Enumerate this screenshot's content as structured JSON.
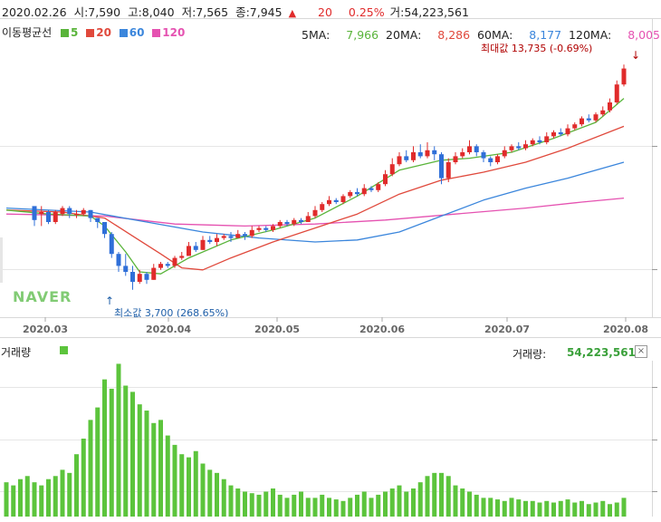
{
  "colors": {
    "up": "#e02b2b",
    "down": "#2f6fd8",
    "ma5": "#59b43a",
    "ma20": "#e0493c",
    "ma60": "#3b86dc",
    "ma120": "#e552b1",
    "volume": "#5cc43c",
    "grid": "#e6e6e6",
    "axis": "#d8d8d8",
    "watermark": "#6cc35c"
  },
  "header": {
    "date": "2020.02.26",
    "open_label": "시:",
    "open": "7,590",
    "high_label": "고:",
    "high": "8,040",
    "low_label": "저:",
    "low": "7,565",
    "close_label": "종:",
    "close": "7,945",
    "change_icon": "up-triangle-icon",
    "change": "20",
    "change_pct": "0.25%",
    "volume_label": "거:",
    "volume": "54,223,561"
  },
  "legend": {
    "title": "이동평균선",
    "items": [
      {
        "label": "5",
        "color": "#59b43a"
      },
      {
        "label": "20",
        "color": "#e0493c"
      },
      {
        "label": "60",
        "color": "#3b86dc"
      },
      {
        "label": "120",
        "color": "#e552b1"
      }
    ],
    "ma_values": [
      {
        "label": "5MA:",
        "value": "7,966",
        "color": "#59b43a"
      },
      {
        "label": "20MA:",
        "value": "8,286",
        "color": "#e0493c"
      },
      {
        "label": "60MA:",
        "value": "8,177",
        "color": "#3b86dc"
      },
      {
        "label": "120MA:",
        "value": "8,005",
        "color": "#e552b1"
      }
    ]
  },
  "annotations": {
    "max_text": "최대값 13,735 (-0.69%)",
    "min_text": "최소값 3,700 (268.65%)"
  },
  "watermark": "NAVER",
  "volume_panel": {
    "label": "거래량",
    "value_label": "거래량:",
    "value": "54,223,561",
    "close_icon": "close-icon"
  },
  "chart_data": [
    {
      "type": "line",
      "x_tick_labels": [
        "2020.03",
        "2020.04",
        "2020.05",
        "2020.06",
        "2020.07",
        "2020.08"
      ],
      "candles": [
        [
          4,
          4.8,
          4.1,
          4.6,
          3.8
        ],
        [
          5,
          4.4,
          4.5,
          4.8,
          3.8
        ],
        [
          6,
          4.5,
          4.0,
          4.6,
          3.9
        ],
        [
          7,
          4.0,
          4.5,
          4.6,
          3.9
        ],
        [
          8,
          4.4,
          4.7,
          4.8,
          4.3
        ],
        [
          9,
          4.7,
          4.4,
          4.8,
          4.2
        ],
        [
          10,
          4.4,
          4.4,
          4.6,
          4.2
        ],
        [
          11,
          4.4,
          4.6,
          4.7,
          4.3
        ],
        [
          12,
          4.6,
          4.2,
          4.6,
          4.0
        ],
        [
          13,
          4.2,
          4.0,
          4.2,
          3.7
        ],
        [
          14,
          4.0,
          3.4,
          4.0,
          3.2
        ],
        [
          15,
          3.4,
          2.4,
          3.5,
          2.2
        ],
        [
          16,
          2.4,
          1.8,
          2.5,
          1.5
        ],
        [
          17,
          1.8,
          1.5,
          2.4,
          1.3
        ],
        [
          18,
          1.5,
          1.0,
          1.8,
          0.6
        ],
        [
          19,
          1.0,
          1.4,
          1.6,
          0.9
        ],
        [
          20,
          1.4,
          1.1,
          1.5,
          0.9
        ],
        [
          21,
          1.1,
          1.7,
          1.9,
          1.1
        ],
        [
          22,
          1.7,
          1.9,
          2.0,
          1.6
        ],
        [
          23,
          1.9,
          1.8,
          2.0,
          1.7
        ],
        [
          24,
          1.8,
          2.2,
          2.3,
          1.7
        ],
        [
          25,
          2.2,
          2.3,
          2.5,
          2.1
        ],
        [
          26,
          2.3,
          2.8,
          3.0,
          2.3
        ],
        [
          27,
          2.8,
          2.6,
          3.0,
          2.5
        ],
        [
          28,
          2.6,
          3.1,
          3.3,
          2.6
        ],
        [
          29,
          3.1,
          3.0,
          3.3,
          2.9
        ],
        [
          30,
          3.0,
          3.2,
          3.4,
          2.8
        ],
        [
          31,
          3.2,
          3.3,
          3.4,
          3.1
        ],
        [
          32,
          3.3,
          3.2,
          3.5,
          3.0
        ],
        [
          33,
          3.2,
          3.4,
          3.6,
          3.2
        ],
        [
          34,
          3.4,
          3.3,
          3.5,
          3.1
        ],
        [
          35,
          3.3,
          3.6,
          3.8,
          3.2
        ],
        [
          36,
          3.6,
          3.7,
          3.8,
          3.5
        ],
        [
          37,
          3.7,
          3.6,
          3.8,
          3.5
        ],
        [
          38,
          3.6,
          3.8,
          3.9,
          3.5
        ],
        [
          39,
          3.8,
          4.0,
          4.1,
          3.7
        ],
        [
          40,
          4.0,
          3.9,
          4.1,
          3.8
        ],
        [
          41,
          3.9,
          4.1,
          4.2,
          3.8
        ],
        [
          42,
          4.1,
          4.0,
          4.2,
          3.9
        ],
        [
          43,
          4.0,
          4.3,
          4.5,
          4.0
        ],
        [
          44,
          4.3,
          4.6,
          4.8,
          4.2
        ],
        [
          45,
          4.6,
          4.9,
          5.0,
          4.5
        ],
        [
          46,
          4.9,
          5.1,
          5.3,
          4.8
        ],
        [
          47,
          5.1,
          5.0,
          5.2,
          4.9
        ],
        [
          48,
          5.0,
          5.3,
          5.4,
          4.9
        ],
        [
          49,
          5.3,
          5.5,
          5.6,
          5.2
        ],
        [
          50,
          5.5,
          5.4,
          5.7,
          5.3
        ],
        [
          51,
          5.4,
          5.7,
          5.9,
          5.3
        ],
        [
          52,
          5.7,
          5.6,
          5.8,
          5.5
        ],
        [
          53,
          5.6,
          5.9,
          6.0,
          5.5
        ],
        [
          54,
          5.9,
          6.4,
          6.6,
          5.8
        ],
        [
          55,
          6.4,
          6.9,
          7.2,
          6.3
        ],
        [
          56,
          6.9,
          7.3,
          7.5,
          6.8
        ],
        [
          57,
          7.3,
          7.1,
          7.6,
          7.0
        ],
        [
          58,
          7.1,
          7.5,
          7.8,
          7.0
        ],
        [
          59,
          7.5,
          7.3,
          7.9,
          7.2
        ],
        [
          60,
          7.3,
          7.6,
          8.0,
          7.2
        ],
        [
          61,
          7.6,
          7.4,
          7.8,
          7.1
        ],
        [
          62,
          7.4,
          6.2,
          7.5,
          5.9
        ],
        [
          63,
          6.2,
          7.0,
          7.2,
          6.0
        ],
        [
          64,
          7.0,
          7.3,
          7.5,
          6.9
        ],
        [
          65,
          7.3,
          7.5,
          7.7,
          7.2
        ],
        [
          66,
          7.5,
          7.8,
          8.1,
          7.4
        ],
        [
          67,
          7.8,
          7.5,
          7.9,
          7.3
        ],
        [
          68,
          7.5,
          7.2,
          7.6,
          7.0
        ],
        [
          69,
          7.2,
          7.0,
          7.3,
          6.8
        ],
        [
          70,
          7.0,
          7.3,
          7.4,
          6.9
        ],
        [
          71,
          7.3,
          7.6,
          7.8,
          7.2
        ],
        [
          72,
          7.6,
          7.8,
          7.9,
          7.5
        ],
        [
          73,
          7.8,
          7.7,
          8.0,
          7.6
        ],
        [
          74,
          7.7,
          7.9,
          8.1,
          7.6
        ],
        [
          75,
          7.9,
          8.1,
          8.2,
          7.8
        ],
        [
          76,
          8.1,
          8.0,
          8.3,
          7.9
        ],
        [
          77,
          8.0,
          8.3,
          8.5,
          7.9
        ],
        [
          78,
          8.3,
          8.5,
          8.6,
          8.2
        ],
        [
          79,
          8.5,
          8.4,
          8.7,
          8.3
        ],
        [
          80,
          8.4,
          8.7,
          8.9,
          8.3
        ],
        [
          81,
          8.7,
          8.9,
          9.0,
          8.6
        ],
        [
          82,
          8.9,
          9.2,
          9.3,
          8.8
        ],
        [
          83,
          9.2,
          9.1,
          9.4,
          9.0
        ],
        [
          84,
          9.1,
          9.4,
          9.5,
          9.0
        ],
        [
          85,
          9.4,
          9.6,
          9.8,
          9.3
        ],
        [
          86,
          9.6,
          10.0,
          10.2,
          9.5
        ],
        [
          87,
          10.0,
          10.9,
          11.1,
          9.9
        ],
        [
          88,
          10.9,
          11.7,
          11.9,
          10.8
        ]
      ],
      "ma5": [
        [
          0,
          4.6
        ],
        [
          6,
          4.4
        ],
        [
          12,
          4.3
        ],
        [
          14,
          3.8
        ],
        [
          17,
          2.5
        ],
        [
          19,
          1.5
        ],
        [
          22,
          1.4
        ],
        [
          26,
          2.2
        ],
        [
          32,
          3.1
        ],
        [
          38,
          3.6
        ],
        [
          44,
          4.2
        ],
        [
          50,
          5.3
        ],
        [
          56,
          6.6
        ],
        [
          62,
          7.1
        ],
        [
          66,
          7.2
        ],
        [
          72,
          7.5
        ],
        [
          78,
          8.2
        ],
        [
          84,
          9.0
        ],
        [
          88,
          10.2
        ]
      ],
      "ma20": [
        [
          0,
          4.6
        ],
        [
          8,
          4.5
        ],
        [
          14,
          4.2
        ],
        [
          18,
          3.3
        ],
        [
          22,
          2.4
        ],
        [
          25,
          1.7
        ],
        [
          28,
          1.6
        ],
        [
          32,
          2.2
        ],
        [
          38,
          3.0
        ],
        [
          44,
          3.7
        ],
        [
          50,
          4.4
        ],
        [
          56,
          5.4
        ],
        [
          62,
          6.1
        ],
        [
          68,
          6.5
        ],
        [
          74,
          7.0
        ],
        [
          80,
          7.7
        ],
        [
          88,
          8.8
        ]
      ],
      "ma60": [
        [
          0,
          4.7
        ],
        [
          12,
          4.5
        ],
        [
          20,
          4.0
        ],
        [
          28,
          3.5
        ],
        [
          36,
          3.2
        ],
        [
          44,
          3.0
        ],
        [
          50,
          3.1
        ],
        [
          56,
          3.5
        ],
        [
          62,
          4.3
        ],
        [
          68,
          5.1
        ],
        [
          74,
          5.7
        ],
        [
          80,
          6.2
        ],
        [
          88,
          7.0
        ]
      ],
      "ma120": [
        [
          0,
          4.4
        ],
        [
          14,
          4.3
        ],
        [
          24,
          3.9
        ],
        [
          34,
          3.8
        ],
        [
          44,
          3.9
        ],
        [
          54,
          4.1
        ],
        [
          64,
          4.4
        ],
        [
          74,
          4.7
        ],
        [
          82,
          5.0
        ],
        [
          88,
          5.2
        ]
      ],
      "volume": [
        [
          0,
          22
        ],
        [
          1,
          20
        ],
        [
          2,
          24
        ],
        [
          3,
          26
        ],
        [
          4,
          22
        ],
        [
          5,
          20
        ],
        [
          6,
          24
        ],
        [
          7,
          26
        ],
        [
          8,
          30
        ],
        [
          9,
          28
        ],
        [
          10,
          40
        ],
        [
          11,
          50
        ],
        [
          12,
          62
        ],
        [
          13,
          70
        ],
        [
          14,
          88
        ],
        [
          15,
          82
        ],
        [
          16,
          98
        ],
        [
          17,
          84
        ],
        [
          18,
          80
        ],
        [
          19,
          72
        ],
        [
          20,
          68
        ],
        [
          21,
          60
        ],
        [
          22,
          62
        ],
        [
          23,
          52
        ],
        [
          24,
          46
        ],
        [
          25,
          40
        ],
        [
          26,
          38
        ],
        [
          27,
          42
        ],
        [
          28,
          34
        ],
        [
          29,
          30
        ],
        [
          30,
          28
        ],
        [
          31,
          24
        ],
        [
          32,
          20
        ],
        [
          33,
          18
        ],
        [
          34,
          16
        ],
        [
          35,
          15
        ],
        [
          36,
          14
        ],
        [
          37,
          16
        ],
        [
          38,
          18
        ],
        [
          39,
          14
        ],
        [
          40,
          12
        ],
        [
          41,
          14
        ],
        [
          42,
          16
        ],
        [
          43,
          12
        ],
        [
          44,
          12
        ],
        [
          45,
          14
        ],
        [
          46,
          12
        ],
        [
          47,
          11
        ],
        [
          48,
          10
        ],
        [
          49,
          12
        ],
        [
          50,
          14
        ],
        [
          51,
          16
        ],
        [
          52,
          12
        ],
        [
          53,
          14
        ],
        [
          54,
          16
        ],
        [
          55,
          18
        ],
        [
          56,
          20
        ],
        [
          57,
          16
        ],
        [
          58,
          18
        ],
        [
          59,
          22
        ],
        [
          60,
          26
        ],
        [
          61,
          28
        ],
        [
          62,
          28
        ],
        [
          63,
          26
        ],
        [
          64,
          20
        ],
        [
          65,
          18
        ],
        [
          66,
          16
        ],
        [
          67,
          14
        ],
        [
          68,
          12
        ],
        [
          69,
          12
        ],
        [
          70,
          11
        ],
        [
          71,
          10
        ],
        [
          72,
          12
        ],
        [
          73,
          11
        ],
        [
          74,
          10
        ],
        [
          75,
          10
        ],
        [
          76,
          9
        ],
        [
          77,
          10
        ],
        [
          78,
          9
        ],
        [
          79,
          10
        ],
        [
          80,
          11
        ],
        [
          81,
          9
        ],
        [
          82,
          10
        ],
        [
          83,
          8
        ],
        [
          84,
          9
        ],
        [
          85,
          10
        ],
        [
          86,
          8
        ],
        [
          87,
          9
        ],
        [
          88,
          12
        ]
      ]
    }
  ]
}
